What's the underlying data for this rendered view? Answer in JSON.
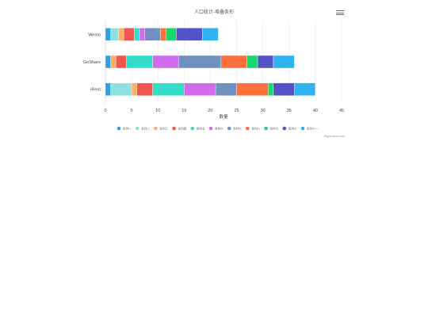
{
  "chart_data": {
    "type": "bar",
    "orientation": "horizontal",
    "stacked": true,
    "title": "人口统计-堆叠条形",
    "xlabel": "数量",
    "ylabel": "",
    "xlim": [
      0,
      45
    ],
    "x_ticks": [
      0,
      5,
      10,
      15,
      20,
      25,
      30,
      35,
      40,
      45
    ],
    "grid": true,
    "legend_position": "bottom",
    "categories": [
      "Wemo",
      "GoShare",
      "iRent"
    ],
    "series": [
      {
        "name": "系列一",
        "color": "#2f9fe0",
        "values": [
          1,
          1,
          1
        ]
      },
      {
        "name": "系列二",
        "color": "#8ee0e3",
        "values": [
          1.5,
          0,
          4
        ]
      },
      {
        "name": "系列三",
        "color": "#f8b262",
        "values": [
          1,
          1,
          1
        ]
      },
      {
        "name": "系列四",
        "color": "#f2554d",
        "values": [
          2,
          2,
          3
        ]
      },
      {
        "name": "系列五",
        "color": "#33ddc8",
        "values": [
          1,
          5,
          6
        ]
      },
      {
        "name": "系列六",
        "color": "#cf6bec",
        "values": [
          1,
          5,
          6
        ]
      },
      {
        "name": "系列七",
        "color": "#7091c0",
        "values": [
          3,
          8,
          4
        ]
      },
      {
        "name": "系列八",
        "color": "#ff6f3b",
        "values": [
          1,
          5,
          6
        ]
      },
      {
        "name": "系列九",
        "color": "#19d86a",
        "values": [
          2,
          2,
          1
        ]
      },
      {
        "name": "系列十",
        "color": "#5352c6",
        "values": [
          5,
          3,
          4
        ]
      },
      {
        "name": "系列十一",
        "color": "#2fb3ec",
        "values": [
          3,
          4,
          4
        ]
      }
    ]
  },
  "credit": "Highcharts.com"
}
